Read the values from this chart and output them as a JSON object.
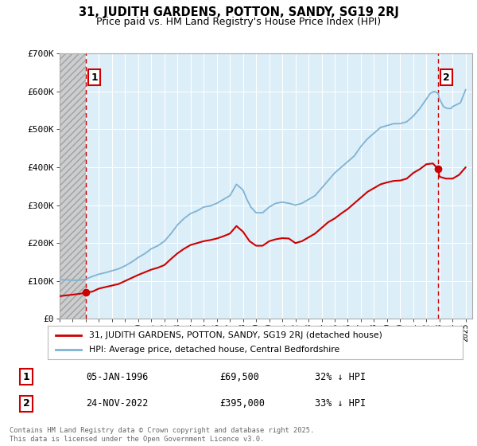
{
  "title_line1": "31, JUDITH GARDENS, POTTON, SANDY, SG19 2RJ",
  "title_line2": "Price paid vs. HM Land Registry's House Price Index (HPI)",
  "background_color": "#ffffff",
  "plot_bg_color": "#dceef8",
  "grid_color": "#ffffff",
  "legend_label_red": "31, JUDITH GARDENS, POTTON, SANDY, SG19 2RJ (detached house)",
  "legend_label_blue": "HPI: Average price, detached house, Central Bedfordshire",
  "annotation1_date": "05-JAN-1996",
  "annotation1_price": "£69,500",
  "annotation1_hpi": "32% ↓ HPI",
  "annotation2_date": "24-NOV-2022",
  "annotation2_price": "£395,000",
  "annotation2_hpi": "33% ↓ HPI",
  "footnote": "Contains HM Land Registry data © Crown copyright and database right 2025.\nThis data is licensed under the Open Government Licence v3.0.",
  "xmin": 1994.0,
  "xmax": 2025.5,
  "ymin": 0,
  "ymax": 700000,
  "yticks": [
    0,
    100000,
    200000,
    300000,
    400000,
    500000,
    600000,
    700000
  ],
  "ytick_labels": [
    "£0",
    "£100K",
    "£200K",
    "£300K",
    "£400K",
    "£500K",
    "£600K",
    "£700K"
  ],
  "xticks": [
    1994,
    1995,
    1996,
    1997,
    1998,
    1999,
    2000,
    2001,
    2002,
    2003,
    2004,
    2005,
    2006,
    2007,
    2008,
    2009,
    2010,
    2011,
    2012,
    2013,
    2014,
    2015,
    2016,
    2017,
    2018,
    2019,
    2020,
    2021,
    2022,
    2023,
    2024,
    2025
  ],
  "sale1_x": 1996.03,
  "sale1_y": 69500,
  "sale2_x": 2022.9,
  "sale2_y": 395000,
  "red_line_color": "#cc0000",
  "blue_line_color": "#7fb3d3",
  "marker_color": "#cc0000",
  "dashed_line_color": "#cc0000",
  "hatch_end_year": 1996.03
}
